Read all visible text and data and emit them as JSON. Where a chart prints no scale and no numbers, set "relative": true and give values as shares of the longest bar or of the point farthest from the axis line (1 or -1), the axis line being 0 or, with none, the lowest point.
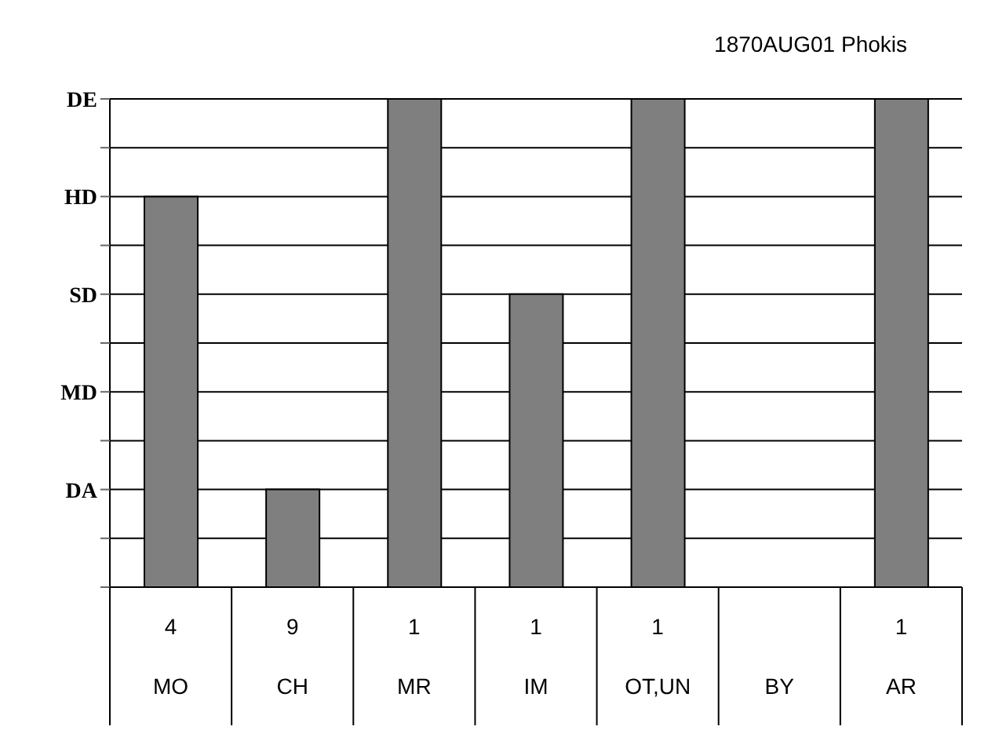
{
  "chart_data": {
    "type": "bar",
    "title": "1870AUG01 Phokis",
    "categories": [
      "MO",
      "CH",
      "MR",
      "IM",
      "OT,UN",
      "BY",
      "AR"
    ],
    "values": [
      0.8,
      0.2,
      1,
      0.6,
      1,
      null,
      1
    ],
    "relative": true,
    "color": "#7f7f7f",
    "grid": "y",
    "annotations": [
      "DE",
      "HD",
      "SD",
      "MD",
      "DA",
      "4",
      "9",
      "1",
      "1",
      "1",
      "1"
    ]
  }
}
